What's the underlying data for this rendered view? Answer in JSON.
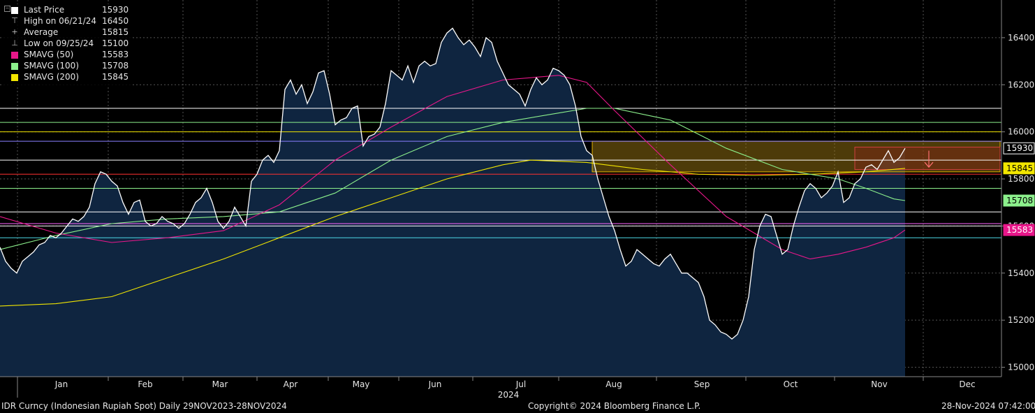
{
  "legend": [
    {
      "label": "Last Price",
      "value": "15930",
      "color": "#ffffff",
      "marker": "square"
    },
    {
      "label": "High on 06/21/24",
      "value": "16450",
      "color": "#bbbbbb",
      "marker": "high"
    },
    {
      "label": "Average",
      "value": "15815",
      "color": "#bbbbbb",
      "marker": "avg"
    },
    {
      "label": "Low on 09/25/24",
      "value": "15100",
      "color": "#bbbbbb",
      "marker": "low"
    },
    {
      "label": "SMAVG (50)",
      "value": "15583",
      "color": "#e8178a",
      "marker": "square"
    },
    {
      "label": "SMAVG (100)",
      "value": "15708",
      "color": "#8cf08c",
      "marker": "square"
    },
    {
      "label": "SMAVG (200)",
      "value": "15845",
      "color": "#f2e600",
      "marker": "square"
    }
  ],
  "footer": {
    "left": "IDR Curncy (Indonesian Rupiah Spot)  Daily 29NOV2023-28NOV2024",
    "center": "Copyright© 2024 Bloomberg Finance L.P.",
    "right": "28-Nov-2024 07:42:00"
  },
  "chart_data": {
    "type": "line",
    "ylim": [
      14960,
      16560
    ],
    "yticks": [
      15000,
      15200,
      15400,
      15600,
      15800,
      16000,
      16200,
      16400
    ],
    "year_label": "2024",
    "months": [
      "Jan",
      "Feb",
      "Mar",
      "Apr",
      "May",
      "Jun",
      "Jul",
      "Aug",
      "Sep",
      "Oct",
      "Nov",
      "Dec"
    ],
    "grid": true,
    "legend_position": "top-left",
    "series": [
      {
        "name": "Last Price",
        "color": "#ffffff",
        "fill": "#0f2540",
        "values": [
          [
            0,
            15510
          ],
          [
            4,
            15450
          ],
          [
            8,
            15420
          ],
          [
            12,
            15400
          ],
          [
            16,
            15450
          ],
          [
            20,
            15470
          ],
          [
            24,
            15490
          ],
          [
            28,
            15520
          ],
          [
            32,
            15530
          ],
          [
            36,
            15560
          ],
          [
            40,
            15550
          ],
          [
            44,
            15570
          ],
          [
            48,
            15600
          ],
          [
            52,
            15630
          ],
          [
            56,
            15620
          ],
          [
            60,
            15640
          ],
          [
            64,
            15680
          ],
          [
            68,
            15780
          ],
          [
            72,
            15830
          ],
          [
            76,
            15820
          ],
          [
            80,
            15790
          ],
          [
            84,
            15770
          ],
          [
            88,
            15700
          ],
          [
            92,
            15650
          ],
          [
            96,
            15700
          ],
          [
            100,
            15710
          ],
          [
            104,
            15620
          ],
          [
            108,
            15600
          ],
          [
            112,
            15610
          ],
          [
            116,
            15640
          ],
          [
            120,
            15620
          ],
          [
            124,
            15610
          ],
          [
            128,
            15590
          ],
          [
            132,
            15610
          ],
          [
            136,
            15650
          ],
          [
            140,
            15700
          ],
          [
            144,
            15720
          ],
          [
            148,
            15760
          ],
          [
            152,
            15700
          ],
          [
            156,
            15620
          ],
          [
            160,
            15590
          ],
          [
            164,
            15620
          ],
          [
            168,
            15680
          ],
          [
            172,
            15640
          ],
          [
            176,
            15600
          ],
          [
            180,
            15790
          ],
          [
            184,
            15820
          ],
          [
            188,
            15880
          ],
          [
            192,
            15900
          ],
          [
            196,
            15870
          ],
          [
            200,
            15920
          ],
          [
            204,
            16180
          ],
          [
            208,
            16220
          ],
          [
            212,
            16160
          ],
          [
            216,
            16200
          ],
          [
            220,
            16120
          ],
          [
            224,
            16170
          ],
          [
            228,
            16250
          ],
          [
            232,
            16260
          ],
          [
            236,
            16160
          ],
          [
            240,
            16030
          ],
          [
            244,
            16050
          ],
          [
            248,
            16060
          ],
          [
            252,
            16100
          ],
          [
            256,
            16110
          ],
          [
            260,
            15940
          ],
          [
            264,
            15980
          ],
          [
            268,
            15990
          ],
          [
            272,
            16020
          ],
          [
            276,
            16120
          ],
          [
            280,
            16260
          ],
          [
            284,
            16240
          ],
          [
            288,
            16220
          ],
          [
            292,
            16280
          ],
          [
            296,
            16210
          ],
          [
            300,
            16280
          ],
          [
            304,
            16300
          ],
          [
            308,
            16280
          ],
          [
            312,
            16290
          ],
          [
            316,
            16380
          ],
          [
            320,
            16420
          ],
          [
            324,
            16440
          ],
          [
            328,
            16400
          ],
          [
            332,
            16370
          ],
          [
            336,
            16390
          ],
          [
            340,
            16360
          ],
          [
            344,
            16320
          ],
          [
            348,
            16400
          ],
          [
            352,
            16380
          ],
          [
            356,
            16300
          ],
          [
            360,
            16250
          ],
          [
            364,
            16200
          ],
          [
            368,
            16180
          ],
          [
            372,
            16160
          ],
          [
            376,
            16110
          ],
          [
            380,
            16180
          ],
          [
            384,
            16230
          ],
          [
            388,
            16200
          ],
          [
            392,
            16220
          ],
          [
            396,
            16270
          ],
          [
            400,
            16260
          ],
          [
            404,
            16240
          ],
          [
            408,
            16200
          ],
          [
            412,
            16110
          ],
          [
            416,
            15980
          ],
          [
            420,
            15920
          ],
          [
            424,
            15900
          ],
          [
            428,
            15800
          ],
          [
            432,
            15720
          ],
          [
            436,
            15640
          ],
          [
            440,
            15580
          ],
          [
            444,
            15500
          ],
          [
            448,
            15430
          ],
          [
            452,
            15450
          ],
          [
            456,
            15500
          ],
          [
            460,
            15480
          ],
          [
            464,
            15460
          ],
          [
            468,
            15440
          ],
          [
            472,
            15430
          ],
          [
            476,
            15460
          ],
          [
            480,
            15480
          ],
          [
            484,
            15440
          ],
          [
            488,
            15400
          ],
          [
            492,
            15400
          ],
          [
            496,
            15380
          ],
          [
            500,
            15360
          ],
          [
            504,
            15300
          ],
          [
            508,
            15200
          ],
          [
            512,
            15180
          ],
          [
            516,
            15150
          ],
          [
            520,
            15140
          ],
          [
            524,
            15120
          ],
          [
            528,
            15140
          ],
          [
            532,
            15200
          ],
          [
            536,
            15300
          ],
          [
            540,
            15500
          ],
          [
            544,
            15600
          ],
          [
            548,
            15650
          ],
          [
            552,
            15640
          ],
          [
            556,
            15560
          ],
          [
            560,
            15480
          ],
          [
            564,
            15500
          ],
          [
            568,
            15600
          ],
          [
            572,
            15680
          ],
          [
            576,
            15750
          ],
          [
            580,
            15780
          ],
          [
            584,
            15760
          ],
          [
            588,
            15720
          ],
          [
            592,
            15740
          ],
          [
            596,
            15770
          ],
          [
            600,
            15830
          ],
          [
            604,
            15700
          ],
          [
            608,
            15720
          ],
          [
            612,
            15780
          ],
          [
            616,
            15800
          ],
          [
            620,
            15850
          ],
          [
            624,
            15860
          ],
          [
            628,
            15840
          ],
          [
            632,
            15880
          ],
          [
            636,
            15920
          ],
          [
            640,
            15870
          ],
          [
            644,
            15890
          ],
          [
            648,
            15930
          ]
        ]
      },
      {
        "name": "SMAVG (50)",
        "color": "#e8178a",
        "values": [
          [
            0,
            15640
          ],
          [
            40,
            15570
          ],
          [
            80,
            15530
          ],
          [
            120,
            15550
          ],
          [
            160,
            15580
          ],
          [
            200,
            15690
          ],
          [
            240,
            15880
          ],
          [
            280,
            16020
          ],
          [
            320,
            16150
          ],
          [
            360,
            16220
          ],
          [
            400,
            16240
          ],
          [
            420,
            16210
          ],
          [
            440,
            16090
          ],
          [
            480,
            15860
          ],
          [
            520,
            15640
          ],
          [
            560,
            15500
          ],
          [
            580,
            15460
          ],
          [
            600,
            15480
          ],
          [
            620,
            15510
          ],
          [
            640,
            15550
          ],
          [
            648,
            15583
          ]
        ]
      },
      {
        "name": "SMAVG (100)",
        "color": "#8cf08c",
        "values": [
          [
            0,
            15500
          ],
          [
            40,
            15560
          ],
          [
            80,
            15610
          ],
          [
            120,
            15630
          ],
          [
            160,
            15640
          ],
          [
            200,
            15660
          ],
          [
            240,
            15740
          ],
          [
            280,
            15880
          ],
          [
            320,
            15980
          ],
          [
            360,
            16040
          ],
          [
            400,
            16080
          ],
          [
            420,
            16100
          ],
          [
            440,
            16100
          ],
          [
            480,
            16050
          ],
          [
            520,
            15930
          ],
          [
            560,
            15840
          ],
          [
            600,
            15800
          ],
          [
            620,
            15760
          ],
          [
            640,
            15715
          ],
          [
            648,
            15708
          ]
        ]
      },
      {
        "name": "SMAVG (200)",
        "color": "#f2e600",
        "values": [
          [
            0,
            15260
          ],
          [
            40,
            15270
          ],
          [
            80,
            15300
          ],
          [
            120,
            15380
          ],
          [
            160,
            15460
          ],
          [
            200,
            15550
          ],
          [
            240,
            15640
          ],
          [
            280,
            15720
          ],
          [
            320,
            15800
          ],
          [
            360,
            15860
          ],
          [
            380,
            15880
          ],
          [
            420,
            15870
          ],
          [
            460,
            15840
          ],
          [
            500,
            15820
          ],
          [
            540,
            15815
          ],
          [
            580,
            15820
          ],
          [
            620,
            15830
          ],
          [
            648,
            15845
          ]
        ]
      }
    ],
    "hlines": [
      {
        "value": 16100,
        "color": "#ffffff"
      },
      {
        "value": 16040,
        "color": "#8cf08c"
      },
      {
        "value": 16000,
        "color": "#f2e600"
      },
      {
        "value": 15960,
        "color": "#8a7fff"
      },
      {
        "value": 15880,
        "color": "#ffffff"
      },
      {
        "value": 15820,
        "color": "#ff3030"
      },
      {
        "value": 15760,
        "color": "#8cf08c"
      },
      {
        "value": 15660,
        "color": "#ffffff"
      },
      {
        "value": 15610,
        "color": "#ff66ff"
      },
      {
        "value": 15600,
        "color": "#ffffff"
      },
      {
        "value": 15550,
        "color": "#4dd8e6"
      }
    ],
    "zones": [
      {
        "from_x": 424,
        "to_x": 716,
        "from_y": 15830,
        "to_y": 15960,
        "fill": "rgba(170,130,20,0.45)",
        "stroke": "#e6b400"
      },
      {
        "from_x": 612,
        "to_x": 716,
        "from_y": 15840,
        "to_y": 15935,
        "fill": "rgba(120,40,20,0.55)",
        "stroke": "#d04040"
      }
    ],
    "arrow": {
      "x": 665,
      "from": 15920,
      "to": 15850,
      "color": "#ff7070"
    },
    "value_tags": [
      {
        "label": "15930",
        "value": 15930,
        "bg": "#000000",
        "fg": "#ffffff",
        "border": "#ffffff"
      },
      {
        "label": "15845",
        "value": 15845,
        "bg": "#f2e600",
        "fg": "#000000",
        "border": "#f2e600"
      },
      {
        "label": "15708",
        "value": 15708,
        "bg": "#8cf08c",
        "fg": "#000000",
        "border": "#8cf08c"
      },
      {
        "label": "15583",
        "value": 15583,
        "bg": "#e8178a",
        "fg": "#ffffff",
        "border": "#e8178a"
      }
    ]
  }
}
